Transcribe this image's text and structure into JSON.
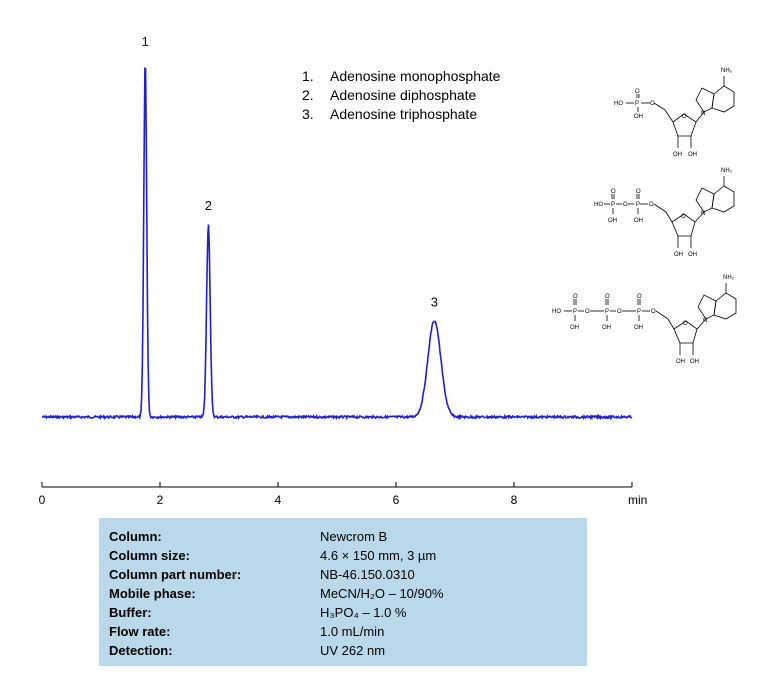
{
  "chart_data": {
    "type": "line",
    "title": "",
    "xlabel": "",
    "ylabel": "",
    "x_unit": "min",
    "xlim": [
      0,
      10
    ],
    "x_ticks": [
      "0",
      "2",
      "4",
      "6",
      "8"
    ],
    "grid": false,
    "line_color": "#1f1fd0",
    "peaks": [
      {
        "label": "1",
        "time": 1.75,
        "height": 1.0,
        "width": 0.025
      },
      {
        "label": "2",
        "time": 2.82,
        "height": 0.54,
        "width": 0.03
      },
      {
        "label": "3",
        "time": 6.65,
        "height": 0.27,
        "width": 0.11
      }
    ]
  },
  "legend": {
    "items": [
      {
        "num": "1.",
        "name": "Adenosine monophosphate"
      },
      {
        "num": "2.",
        "name": "Adenosine diphosphate"
      },
      {
        "num": "3.",
        "name": "Adenosine triphosphate"
      }
    ]
  },
  "structures": {
    "ho": "HO",
    "p": "P",
    "o": "O",
    "oh": "OH",
    "n": "N",
    "nh2": "NH₂"
  },
  "conditions": {
    "column_label": "Column:",
    "column_value": "Newcrom  B",
    "size_label": "Column size:",
    "size_value": "4.6 × 150 mm, 3 µm",
    "part_label": "Column part number:",
    "part_value": "NB-46.150.0310",
    "mobile_label": "Mobile phase:",
    "mobile_value": "MeCN/H₂O – 10/90%",
    "buffer_label": "Buffer:",
    "buffer_value": "H₃PO₄  – 1.0 %",
    "flow_label": "Flow rate:",
    "flow_value": "1.0 mL/min",
    "detection_label": "Detection:",
    "detection_value": "UV 262 nm"
  }
}
